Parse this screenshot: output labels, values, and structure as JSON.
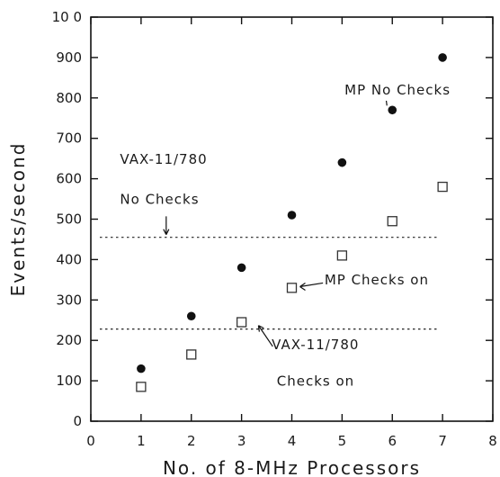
{
  "chart_data": {
    "type": "scatter",
    "title": "",
    "xlabel": "No. of 8-MHz Processors",
    "ylabel": "Events/second",
    "xlim": [
      0,
      8
    ],
    "ylim": [
      0,
      1000
    ],
    "x_ticks": [
      0,
      1,
      2,
      3,
      4,
      5,
      6,
      7,
      8
    ],
    "y_ticks": [
      0,
      100,
      200,
      300,
      400,
      500,
      600,
      700,
      800,
      900,
      1000
    ],
    "y_tick_labels": [
      "0",
      "100",
      "200",
      "300",
      "400",
      "500",
      "600",
      "700",
      "800",
      "900",
      "10 0"
    ],
    "grid": false,
    "series": [
      {
        "name": "MP No Checks",
        "marker": "filled-circle",
        "color": "#111111",
        "x": [
          1,
          2,
          3,
          4,
          5,
          6,
          7
        ],
        "y": [
          130,
          260,
          380,
          510,
          640,
          770,
          900
        ]
      },
      {
        "name": "MP Checks on",
        "marker": "open-square",
        "color": "#333333",
        "x": [
          1,
          2,
          3,
          4,
          5,
          6,
          7
        ],
        "y": [
          85,
          165,
          245,
          330,
          410,
          495,
          580
        ]
      }
    ],
    "reference_lines": [
      {
        "label_lines": [
          "VAX-11/780",
          "No Checks"
        ],
        "y": 455,
        "x_range": [
          0,
          7.8
        ],
        "style": "dotted"
      },
      {
        "label_lines": [
          "VAX-11/780",
          "Checks on"
        ],
        "y": 228,
        "x_range": [
          0,
          7.8
        ],
        "style": "dotted"
      }
    ]
  }
}
